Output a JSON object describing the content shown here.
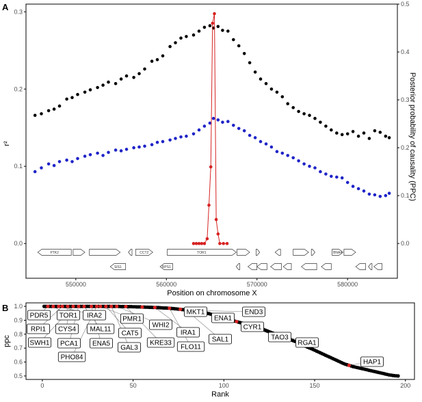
{
  "chart_data": [
    {
      "panel": "A",
      "type": "scatter",
      "xlabel": "Position on chromosome X",
      "ylabel": "r²",
      "y2label": "Posterior probability of causality (PPC)",
      "xlim": [
        544500,
        585500
      ],
      "ylim": [
        -0.045,
        0.31
      ],
      "y2lim": [
        -0.0726,
        0.5
      ],
      "xticks": [
        550000,
        560000,
        570000,
        580000
      ],
      "xtick_labels": [
        "550000",
        "560000",
        "570000",
        "580000"
      ],
      "yticks": [
        0.0,
        0.1,
        0.2,
        0.3
      ],
      "ytick_labels": [
        "0.0",
        "0.1",
        "0.2",
        "0.3"
      ],
      "y2ticks": [
        0.0,
        0.1,
        0.2,
        0.3,
        0.4,
        0.5
      ],
      "y2tick_labels": [
        "0.0",
        "0.1",
        "0.2",
        "0.3",
        "0.4",
        "0.5"
      ],
      "grid": false,
      "series": [
        {
          "color": "#000000",
          "axis": "left",
          "style": "points",
          "x": [
            545500,
            546200,
            547000,
            547600,
            548200,
            549000,
            549600,
            550200,
            551000,
            551600,
            552400,
            553000,
            553600,
            554400,
            555000,
            555600,
            556400,
            557000,
            557600,
            558400,
            559000,
            559600,
            560400,
            561000,
            561600,
            562200,
            563000,
            563600,
            564200,
            564800,
            565200,
            565700,
            566200,
            566800,
            567400,
            568000,
            568600,
            569200,
            569800,
            570400,
            571000,
            571600,
            572200,
            572800,
            573400,
            574000,
            574600,
            575200,
            575800,
            576400,
            577000,
            577600,
            578200,
            578800,
            579400,
            580000,
            580600,
            581200,
            581800,
            582400,
            583000,
            583600,
            584200,
            584600
          ],
          "y": [
            0.166,
            0.168,
            0.172,
            0.174,
            0.178,
            0.187,
            0.189,
            0.193,
            0.196,
            0.199,
            0.202,
            0.205,
            0.209,
            0.207,
            0.213,
            0.217,
            0.215,
            0.22,
            0.226,
            0.236,
            0.238,
            0.243,
            0.255,
            0.26,
            0.266,
            0.268,
            0.27,
            0.275,
            0.28,
            0.282,
            0.279,
            0.281,
            0.276,
            0.275,
            0.264,
            0.256,
            0.246,
            0.234,
            0.222,
            0.213,
            0.207,
            0.2,
            0.196,
            0.19,
            0.181,
            0.176,
            0.171,
            0.168,
            0.166,
            0.162,
            0.157,
            0.152,
            0.147,
            0.143,
            0.141,
            0.142,
            0.145,
            0.139,
            0.143,
            0.136,
            0.146,
            0.144,
            0.139,
            0.137
          ]
        },
        {
          "color": "#1f24c8",
          "axis": "left",
          "style": "points",
          "x": [
            545500,
            546200,
            547000,
            547600,
            548200,
            549000,
            549600,
            550200,
            551000,
            551600,
            552400,
            553000,
            553600,
            554400,
            555000,
            555600,
            556400,
            557000,
            557600,
            558400,
            559000,
            559600,
            560400,
            561000,
            561600,
            562200,
            563000,
            563600,
            564200,
            564800,
            565200,
            565700,
            566200,
            566800,
            567400,
            568000,
            568600,
            569200,
            569800,
            570400,
            571000,
            571600,
            572200,
            572800,
            573400,
            574000,
            574600,
            575200,
            575800,
            576400,
            577000,
            577600,
            578200,
            578800,
            579400,
            580000,
            580600,
            581200,
            581800,
            582400,
            583000,
            583600,
            584200,
            584600
          ],
          "y": [
            0.093,
            0.098,
            0.103,
            0.101,
            0.106,
            0.108,
            0.106,
            0.11,
            0.113,
            0.115,
            0.117,
            0.114,
            0.118,
            0.121,
            0.12,
            0.122,
            0.124,
            0.125,
            0.126,
            0.128,
            0.131,
            0.132,
            0.134,
            0.136,
            0.138,
            0.139,
            0.142,
            0.147,
            0.152,
            0.156,
            0.162,
            0.16,
            0.157,
            0.158,
            0.153,
            0.149,
            0.146,
            0.14,
            0.137,
            0.132,
            0.129,
            0.125,
            0.119,
            0.117,
            0.114,
            0.111,
            0.107,
            0.103,
            0.1,
            0.098,
            0.093,
            0.09,
            0.087,
            0.086,
            0.085,
            0.079,
            0.074,
            0.071,
            0.068,
            0.064,
            0.063,
            0.061,
            0.062,
            0.065
          ]
        },
        {
          "color": "#d62222",
          "axis": "right",
          "style": "line+points",
          "x": [
            563000,
            563300,
            563600,
            563900,
            564200,
            564500,
            564700,
            564900,
            565100,
            565300,
            565500,
            565700,
            565900,
            566300,
            566700
          ],
          "y": [
            0.0,
            0.0,
            0.0,
            0.0,
            0.0,
            0.01,
            0.08,
            0.16,
            0.46,
            0.48,
            0.05,
            0.02,
            0.0,
            0.0,
            0.0
          ]
        }
      ],
      "genes": [
        {
          "label": "PTK2",
          "start": 545800,
          "end": 549500,
          "strand": "-",
          "row": 0
        },
        {
          "label": "",
          "start": 549700,
          "end": 551000,
          "strand": "+",
          "row": 0
        },
        {
          "label": "",
          "start": 551500,
          "end": 554900,
          "strand": "+",
          "row": 0
        },
        {
          "label": "",
          "start": 555800,
          "end": 556200,
          "strand": "-",
          "row": 0
        },
        {
          "label": "CCT2",
          "start": 556600,
          "end": 558500,
          "strand": "+",
          "row": 0
        },
        {
          "label": "TOR1",
          "start": 560100,
          "end": 567700,
          "strand": "+",
          "row": 0
        },
        {
          "label": "",
          "start": 567800,
          "end": 569200,
          "strand": "+",
          "row": 0
        },
        {
          "label": "",
          "start": 569900,
          "end": 570300,
          "strand": "+",
          "row": 0
        },
        {
          "label": "",
          "start": 572000,
          "end": 572600,
          "strand": "-",
          "row": 0
        },
        {
          "label": "",
          "start": 574000,
          "end": 575700,
          "strand": "+",
          "row": 0
        },
        {
          "label": "",
          "start": 576000,
          "end": 576400,
          "strand": "+",
          "row": 0
        },
        {
          "label": "BNA4",
          "start": 578300,
          "end": 579500,
          "strand": "+",
          "row": 0
        },
        {
          "label": "",
          "start": 579600,
          "end": 580900,
          "strand": "+",
          "row": 0
        },
        {
          "label": "SIS1",
          "start": 553800,
          "end": 555500,
          "strand": "-",
          "row": 1
        },
        {
          "label": "RPS1",
          "start": 559300,
          "end": 560700,
          "strand": "-",
          "row": 1
        },
        {
          "label": "",
          "start": 567700,
          "end": 568100,
          "strand": "-",
          "row": 1
        },
        {
          "label": "",
          "start": 569000,
          "end": 570000,
          "strand": "-",
          "row": 1
        },
        {
          "label": "",
          "start": 570000,
          "end": 571100,
          "strand": "-",
          "row": 1
        },
        {
          "label": "",
          "start": 571500,
          "end": 572700,
          "strand": "-",
          "row": 1
        },
        {
          "label": "",
          "start": 572900,
          "end": 573800,
          "strand": "-",
          "row": 1
        },
        {
          "label": "",
          "start": 574900,
          "end": 576600,
          "strand": "-",
          "row": 1
        },
        {
          "label": "",
          "start": 577100,
          "end": 578200,
          "strand": "-",
          "row": 1
        },
        {
          "label": "",
          "start": 580900,
          "end": 582000,
          "strand": "-",
          "row": 1
        },
        {
          "label": "",
          "start": 582300,
          "end": 582700,
          "strand": "-",
          "row": 1
        },
        {
          "label": "",
          "start": 582900,
          "end": 583800,
          "strand": "-",
          "row": 1
        }
      ]
    },
    {
      "panel": "B",
      "type": "scatter",
      "xlabel": "Rank",
      "ylabel": "ppc",
      "xlim": [
        -9,
        205
      ],
      "ylim": [
        0.475,
        1.025
      ],
      "xticks": [
        0,
        50,
        100,
        150,
        200
      ],
      "xtick_labels": [
        "0",
        "50",
        "100",
        "150",
        "200"
      ],
      "yticks": [
        0.5,
        0.6,
        0.7,
        0.8,
        0.9,
        1.0
      ],
      "ytick_labels": [
        "0.5",
        "0.6",
        "0.7",
        "0.8",
        "0.9",
        "1.0"
      ],
      "grid": false,
      "curve": {
        "color": "#000000",
        "highlight_color": "#d62222",
        "n_points": 196,
        "ppc": [
          1.0,
          1.0,
          1.0,
          1.0,
          1.0,
          1.0,
          1.0,
          1.0,
          1.0,
          1.0,
          1.0,
          1.0,
          1.0,
          1.0,
          1.0,
          1.0,
          1.0,
          1.0,
          1.0,
          1.0,
          1.0,
          1.0,
          1.0,
          1.0,
          1.0,
          1.0,
          1.0,
          1.0,
          1.0,
          1.0,
          1.0,
          1.0,
          1.0,
          1.0,
          1.0,
          1.0,
          1.0,
          1.0,
          1.0,
          1.0,
          1.0,
          1.0,
          0.999,
          0.999,
          0.999,
          0.999,
          0.998,
          0.998,
          0.998,
          0.997,
          0.997,
          0.996,
          0.996,
          0.996,
          0.995,
          0.995,
          0.994,
          0.994,
          0.993,
          0.993,
          0.992,
          0.992,
          0.991,
          0.991,
          0.99,
          0.989,
          0.988,
          0.988,
          0.987,
          0.986,
          0.985,
          0.984,
          0.983,
          0.982,
          0.98,
          0.979,
          0.977,
          0.976,
          0.975,
          0.973,
          0.972,
          0.97,
          0.968,
          0.966,
          0.964,
          0.962,
          0.96,
          0.957,
          0.955,
          0.952,
          0.95,
          0.947,
          0.943,
          0.94,
          0.936,
          0.932,
          0.928,
          0.925,
          0.921,
          0.917,
          0.913,
          0.91,
          0.906,
          0.902,
          0.898,
          0.894,
          0.891,
          0.887,
          0.883,
          0.879,
          0.875,
          0.872,
          0.868,
          0.864,
          0.86,
          0.856,
          0.852,
          0.849,
          0.845,
          0.841,
          0.837,
          0.833,
          0.828,
          0.823,
          0.818,
          0.813,
          0.808,
          0.803,
          0.798,
          0.793,
          0.788,
          0.784,
          0.779,
          0.774,
          0.769,
          0.764,
          0.759,
          0.754,
          0.749,
          0.744,
          0.738,
          0.732,
          0.726,
          0.72,
          0.714,
          0.708,
          0.702,
          0.697,
          0.691,
          0.685,
          0.679,
          0.673,
          0.667,
          0.661,
          0.655,
          0.649,
          0.643,
          0.637,
          0.631,
          0.625,
          0.619,
          0.613,
          0.607,
          0.601,
          0.595,
          0.589,
          0.584,
          0.58,
          0.576,
          0.572,
          0.568,
          0.565,
          0.562,
          0.559,
          0.556,
          0.553,
          0.55,
          0.547,
          0.544,
          0.541,
          0.538,
          0.535,
          0.532,
          0.529,
          0.526,
          0.523,
          0.52,
          0.517,
          0.514,
          0.511,
          0.508,
          0.506,
          0.504,
          0.502,
          0.501,
          0.5
        ],
        "highlighted_ranks": [
          3,
          6,
          9,
          11,
          14,
          17,
          20,
          23,
          27,
          30,
          32,
          35,
          38,
          41,
          46,
          55,
          62,
          70,
          76,
          79,
          82,
          88,
          95,
          101,
          107,
          117,
          134,
          169
        ]
      },
      "labels": [
        {
          "text": "PDR5",
          "rank": 3
        },
        {
          "text": "TOR1",
          "rank": 6
        },
        {
          "text": "IRA2",
          "rank": 9
        },
        {
          "text": "RPI1",
          "rank": 11
        },
        {
          "text": "CYS4",
          "rank": 14
        },
        {
          "text": "SWH1",
          "rank": 17
        },
        {
          "text": "PCA1",
          "rank": 20
        },
        {
          "text": "MAL11",
          "rank": 23
        },
        {
          "text": "ENA5",
          "rank": 27
        },
        {
          "text": "PHO84",
          "rank": 30
        },
        {
          "text": "PMR1",
          "rank": 32
        },
        {
          "text": "CAT5",
          "rank": 35
        },
        {
          "text": "GAL3",
          "rank": 38
        },
        {
          "text": "WHI2",
          "rank": 41
        },
        {
          "text": "KRE33",
          "rank": 46
        },
        {
          "text": "MKT1",
          "rank": 55
        },
        {
          "text": "IRA1",
          "rank": 62
        },
        {
          "text": "FLO11",
          "rank": 70
        },
        {
          "text": "ENA1",
          "rank": 76
        },
        {
          "text": "SAL1",
          "rank": 79
        },
        {
          "text": "END3",
          "rank": 82
        },
        {
          "text": "CYR1",
          "rank": 88
        },
        {
          "text": "TAO3",
          "rank": 95
        },
        {
          "text": "RGA1",
          "rank": 101
        },
        {
          "text": "HAP1",
          "rank": 169
        }
      ]
    }
  ]
}
